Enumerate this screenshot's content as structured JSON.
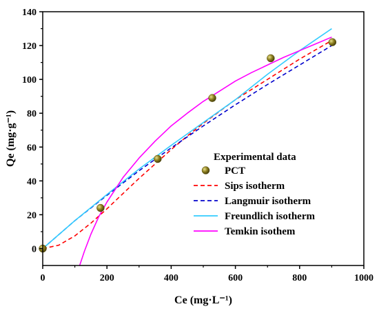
{
  "chart_data": {
    "type": "scatter",
    "xlabel": "Ce (mg·L⁻¹)",
    "ylabel": "Qe (mg·g⁻¹)",
    "xlim": [
      0,
      1000
    ],
    "ylim": [
      -10,
      140
    ],
    "xticks": [
      0,
      200,
      400,
      600,
      800,
      1000
    ],
    "yticks": [
      0,
      20,
      40,
      60,
      80,
      100,
      120,
      140
    ],
    "grid": false,
    "legend_position": "lower-right",
    "legend_title": "Experimental data",
    "points": {
      "name": "PCT",
      "color": "#8b7d1e",
      "x": [
        0,
        180,
        358,
        528,
        710,
        902
      ],
      "y": [
        0,
        24,
        53,
        89,
        112.5,
        122
      ]
    },
    "series": [
      {
        "name": "Sips isotherm",
        "color": "#ff0000",
        "style": "dashed",
        "x": [
          0,
          50,
          100,
          150,
          200,
          250,
          300,
          350,
          400,
          450,
          500,
          550,
          600,
          650,
          700,
          750,
          800,
          850,
          900
        ],
        "y": [
          0,
          2,
          7.5,
          15,
          23.5,
          32.5,
          41.5,
          50,
          58.5,
          66.5,
          74,
          81,
          88,
          94,
          100,
          106,
          112,
          117.5,
          123
        ]
      },
      {
        "name": "Langmuir isotherm",
        "color": "#0000cc",
        "style": "dashed",
        "x": [
          0,
          100,
          200,
          300,
          400,
          500,
          600,
          700,
          800,
          900
        ],
        "y": [
          0,
          16.5,
          31.5,
          46,
          59.5,
          72.5,
          85,
          97,
          108.5,
          120
        ]
      },
      {
        "name": "Freundlich isotherm",
        "color": "#33ccff",
        "style": "solid",
        "x": [
          0,
          100,
          200,
          300,
          400,
          500,
          600,
          700,
          800,
          900
        ],
        "y": [
          0,
          16.5,
          32,
          47,
          61,
          74.5,
          88,
          103,
          117,
          130
        ]
      },
      {
        "name": "Temkin isothem",
        "color": "#ff00ff",
        "style": "solid",
        "x": [
          115,
          130,
          150,
          175,
          200,
          250,
          300,
          350,
          400,
          450,
          500,
          550,
          600,
          650,
          700,
          750,
          800,
          850,
          900
        ],
        "y": [
          -10,
          -1.5,
          8.5,
          19,
          27.5,
          42,
          53.5,
          63.5,
          72.5,
          80,
          87,
          93,
          99,
          104,
          108.5,
          113,
          117,
          121,
          125
        ]
      }
    ]
  }
}
